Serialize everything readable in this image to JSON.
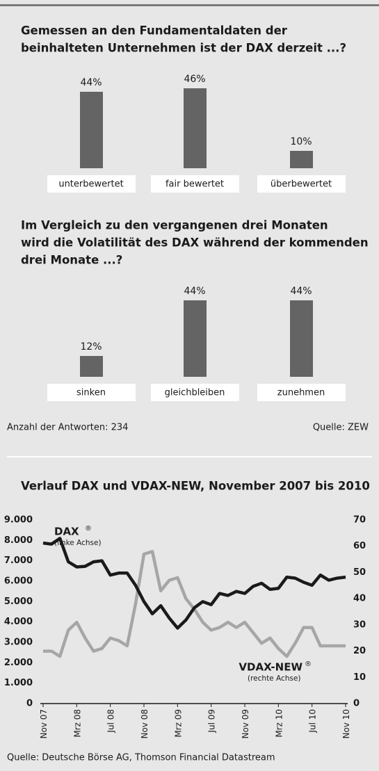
{
  "chart_data": [
    {
      "type": "bar",
      "title": [
        "Gemessen an den Fundamentaldaten der",
        "beinhalteten Unternehmen ist der DAX derzeit ...?"
      ],
      "categories": [
        "unterbewertet",
        "fair bewertet",
        "überbewertet"
      ],
      "values": [
        44,
        46,
        10
      ],
      "value_labels": [
        "44%",
        "46%",
        "10%"
      ],
      "color": "#646464"
    },
    {
      "type": "bar",
      "title": [
        "Im Vergleich zu den vergangenen drei Monaten",
        "wird die Volatilität des DAX während der kommenden",
        "drei Monate ...?"
      ],
      "categories": [
        "sinken",
        "gleichbleiben",
        "zunehmen"
      ],
      "values": [
        12,
        44,
        44
      ],
      "value_labels": [
        "12%",
        "44%",
        "44%"
      ],
      "color": "#646464",
      "note": "Anzahl der Antworten: 234",
      "source": "Quelle: ZEW"
    },
    {
      "type": "line",
      "title": [
        "Verlauf DAX und VDAX-NEW, November 2007 bis 2010"
      ],
      "x": [
        0,
        1,
        2,
        3,
        4,
        5,
        6,
        7,
        8,
        9,
        10,
        11,
        12,
        13,
        14,
        15,
        16,
        17,
        18,
        19,
        20,
        21,
        22,
        23,
        24,
        25,
        26,
        27,
        28,
        29,
        30,
        31,
        32,
        33,
        34,
        35,
        36
      ],
      "xlim": [
        0,
        36
      ],
      "xticks": [
        {
          "value": 0,
          "label": "Nov 07"
        },
        {
          "value": 4,
          "label": "Mrz 08"
        },
        {
          "value": 8,
          "label": "Jul 08"
        },
        {
          "value": 12,
          "label": "Nov 08"
        },
        {
          "value": 16,
          "label": "Mrz 09"
        },
        {
          "value": 20,
          "label": "Jul 09"
        },
        {
          "value": 24,
          "label": "Nov 09"
        },
        {
          "value": 28,
          "label": "Mrz 10"
        },
        {
          "value": 32,
          "label": "Jul 10"
        },
        {
          "value": 36,
          "label": "Nov 10"
        }
      ],
      "ylim": [
        0,
        9000
      ],
      "yticks": [
        {
          "value": 0,
          "label": "0"
        },
        {
          "value": 1000,
          "label": "1.000"
        },
        {
          "value": 2000,
          "label": "2.000"
        },
        {
          "value": 3000,
          "label": "3.000"
        },
        {
          "value": 4000,
          "label": "4.000"
        },
        {
          "value": 5000,
          "label": "5.000"
        },
        {
          "value": 6000,
          "label": "6.000"
        },
        {
          "value": 7000,
          "label": "7.000"
        },
        {
          "value": 8000,
          "label": "8.000"
        },
        {
          "value": 9000,
          "label": "9.000"
        }
      ],
      "y2lim": [
        0,
        70
      ],
      "y2ticks": [
        0,
        10,
        20,
        30,
        40,
        50,
        60,
        70
      ],
      "series": [
        {
          "name": "DAX",
          "mark": "®",
          "note": "(linke Achse)",
          "color": "#1a1a1a",
          "values": [
            7870,
            7820,
            8100,
            6950,
            6700,
            6730,
            6950,
            7000,
            6300,
            6400,
            6400,
            5800,
            5000,
            4400,
            4800,
            4200,
            3700,
            4100,
            4700,
            5000,
            4850,
            5400,
            5300,
            5500,
            5400,
            5750,
            5900,
            5600,
            5650,
            6200,
            6150,
            5950,
            5800,
            6300,
            6050,
            6150,
            6200
          ]
        },
        {
          "name": "VDAX-NEW",
          "mark": "®",
          "note": "(rechte Achse)",
          "color": "#a6a6a6",
          "axis": "y2",
          "values": [
            20,
            20,
            18,
            28,
            31,
            25,
            20,
            21,
            25,
            24,
            22,
            38,
            57,
            58,
            43,
            47,
            48,
            40,
            36,
            31,
            28,
            29,
            31,
            29,
            31,
            27,
            23,
            25,
            21,
            18,
            23,
            29,
            29,
            22,
            22,
            22,
            22
          ]
        }
      ],
      "source": "Quelle: Deutsche Börse AG, Thomson Financial Datastream"
    }
  ]
}
